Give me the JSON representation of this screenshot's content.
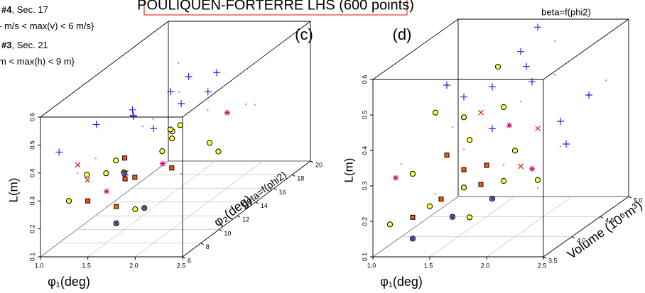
{
  "title": "POULIQUEN-FORTERRE LHS (600 points)",
  "top_right_label": "beta=f(phi2)",
  "notes": [
    {
      "bold": "#4",
      "text": ", Sec. 17"
    },
    {
      "text": "- m/s < max(v) < 6 m/s}"
    },
    {
      "bold": "#3",
      "text": ", Sec. 21"
    },
    {
      "text": "m < max(h) < 9 m}"
    }
  ],
  "chart_data": [
    {
      "type": "scatter3d",
      "panel_label": "(c)",
      "annotation": "beta=f(phi2)",
      "x_label": "φ₁(deg)",
      "y_label": "φ₂(deg)",
      "z_label": "L(m)",
      "xlim": [
        1,
        2.5
      ],
      "xticks": [
        {
          "value": 1,
          "label": "1.0"
        },
        1.5,
        {
          "value": 2,
          "label": "2.0"
        },
        2.5
      ],
      "ylim": [
        6,
        20
      ],
      "yticks": [
        6,
        8,
        10,
        12,
        14,
        16,
        18,
        20
      ],
      "zlim": [
        0.1,
        0.6
      ],
      "zticks": [
        0.1,
        0.2,
        0.3,
        0.4,
        0.5,
        0.6
      ],
      "grid": true,
      "series": [
        {
          "marker": "dot",
          "color": "#aaaaaa",
          "x": [
            1.2,
            1.5,
            1.8,
            2.1,
            2.4,
            1.3,
            1.7,
            2.2,
            1.9,
            2.3,
            1.1,
            1.6
          ],
          "y": [
            8,
            12,
            16,
            10,
            14,
            18,
            6,
            12,
            9,
            16,
            11,
            15
          ],
          "z": [
            0.35,
            0.42,
            0.38,
            0.3,
            0.45,
            0.5,
            0.28,
            0.36,
            0.52,
            0.4,
            0.33,
            0.47
          ]
        },
        {
          "marker": "plus",
          "color": "#2222ee",
          "x": [
            1.1,
            1.3,
            1.5,
            1.7,
            1.9,
            2.1,
            1.2,
            1.6,
            2.0,
            1.4,
            1.8
          ],
          "y": [
            7,
            9,
            11,
            13,
            15,
            10,
            14,
            16,
            8,
            12,
            17
          ],
          "z": [
            0.45,
            0.5,
            0.48,
            0.52,
            0.47,
            0.55,
            0.43,
            0.5,
            0.51,
            0.46,
            0.49
          ]
        },
        {
          "marker": "circle",
          "color": "#ffff33",
          "x": [
            1.3,
            1.5,
            1.7,
            1.9,
            2.1,
            2.3,
            1.4,
            1.8,
            2.2,
            1.6,
            2.0,
            2.4,
            1.2
          ],
          "y": [
            6,
            8,
            7,
            10,
            9,
            12,
            11,
            13,
            8,
            14,
            6,
            10,
            9
          ],
          "z": [
            0.3,
            0.35,
            0.42,
            0.38,
            0.45,
            0.33,
            0.28,
            0.4,
            0.5,
            0.36,
            0.27,
            0.41,
            0.32
          ]
        },
        {
          "marker": "square",
          "color": "#ff5500",
          "x": [
            1.5,
            1.7,
            1.9,
            1.6,
            2.0,
            1.8
          ],
          "y": [
            6,
            8,
            7,
            9,
            10,
            6
          ],
          "z": [
            0.3,
            0.33,
            0.36,
            0.38,
            0.32,
            0.28
          ]
        },
        {
          "marker": "x",
          "color": "#ee1111",
          "x": [
            1.2,
            1.4,
            1.9
          ],
          "y": [
            8,
            7,
            6
          ],
          "z": [
            0.38,
            0.35,
            0.4
          ]
        },
        {
          "marker": "star",
          "color": "#cc1177",
          "x": [
            1.6,
            2.2,
            2.0
          ],
          "y": [
            7,
            14,
            9
          ],
          "z": [
            0.31,
            0.42,
            0.36
          ]
        },
        {
          "marker": "circle-cross",
          "color": "#8888ee",
          "x": [
            1.8,
            2.0,
            1.5
          ],
          "y": [
            6,
            7,
            10
          ],
          "z": [
            0.22,
            0.25,
            0.3
          ]
        }
      ]
    },
    {
      "type": "scatter3d",
      "panel_label": "(d)",
      "x_label": "φ₁(deg)",
      "y_label": "Volume (10⁶m³)",
      "z_label": "L(m)",
      "xlim": [
        1,
        2.5
      ],
      "xticks": [
        {
          "value": 1,
          "label": "1.0"
        },
        1.5,
        {
          "value": 2,
          "label": "2.0"
        },
        2.5
      ],
      "ylim": [
        3.5,
        5
      ],
      "yticks": [
        3.5,
        {
          "value": 4,
          "label": "4.0"
        },
        4.5,
        {
          "value": 5,
          "label": "5.0"
        }
      ],
      "zlim": [
        0.1,
        0.6
      ],
      "zticks": [
        0.1,
        0.2,
        0.3,
        0.4,
        0.5,
        0.6
      ],
      "grid": true,
      "series": [
        {
          "marker": "dot",
          "color": "#aaaaaa",
          "x": [
            1.2,
            1.5,
            1.8,
            2.1,
            2.4,
            1.3,
            1.7,
            2.2,
            1.9,
            2.3,
            1.6,
            2.0
          ],
          "y": [
            3.6,
            3.9,
            4.2,
            4.5,
            4.8,
            4.0,
            3.7,
            4.4,
            4.9,
            3.8,
            4.6,
            4.1
          ],
          "z": [
            0.35,
            0.42,
            0.28,
            0.5,
            0.45,
            0.22,
            0.38,
            0.31,
            0.55,
            0.26,
            0.4,
            0.47
          ]
        },
        {
          "marker": "plus",
          "color": "#2222ee",
          "x": [
            1.5,
            1.7,
            1.9,
            2.1,
            2.3,
            1.6,
            2.0,
            2.2,
            1.8,
            2.4,
            1.4
          ],
          "y": [
            3.8,
            4.2,
            4.5,
            4.0,
            4.7,
            4.9,
            3.6,
            4.4,
            4.8,
            4.1,
            4.3
          ],
          "z": [
            0.55,
            0.5,
            0.48,
            0.58,
            0.42,
            0.52,
            0.45,
            0.38,
            0.6,
            0.35,
            0.46
          ]
        },
        {
          "marker": "circle",
          "color": "#ffff33",
          "x": [
            1.1,
            1.2,
            1.3,
            1.4,
            1.5,
            1.6,
            1.7,
            1.8,
            2.0,
            2.2,
            1.3,
            1.5,
            1.9
          ],
          "y": [
            3.6,
            3.8,
            4.0,
            3.7,
            4.2,
            3.9,
            4.4,
            3.6,
            3.8,
            4.0,
            4.5,
            4.7,
            4.2
          ],
          "z": [
            0.18,
            0.3,
            0.45,
            0.22,
            0.35,
            0.25,
            0.42,
            0.2,
            0.28,
            0.26,
            0.38,
            0.5,
            0.32
          ]
        },
        {
          "marker": "square",
          "color": "#ff5500",
          "x": [
            1.3,
            1.5,
            1.6,
            1.8,
            1.4,
            1.7
          ],
          "y": [
            3.6,
            3.7,
            3.9,
            3.8,
            4.0,
            4.1
          ],
          "z": [
            0.2,
            0.24,
            0.3,
            0.27,
            0.33,
            0.29
          ]
        },
        {
          "marker": "x",
          "color": "#ee1111",
          "x": [
            1.7,
            2.0,
            2.1
          ],
          "y": [
            4.0,
            4.4,
            3.9
          ],
          "z": [
            0.45,
            0.36,
            0.31
          ]
        },
        {
          "marker": "star",
          "color": "#cc1177",
          "x": [
            1.1,
            1.8,
            2.1
          ],
          "y": [
            3.7,
            4.3,
            4.1
          ],
          "z": [
            0.3,
            0.38,
            0.28
          ]
        },
        {
          "marker": "circle-cross",
          "color": "#8888ee",
          "x": [
            1.3,
            1.6,
            1.9
          ],
          "y": [
            3.6,
            3.7,
            3.8
          ],
          "z": [
            0.14,
            0.19,
            0.23
          ]
        }
      ]
    }
  ]
}
